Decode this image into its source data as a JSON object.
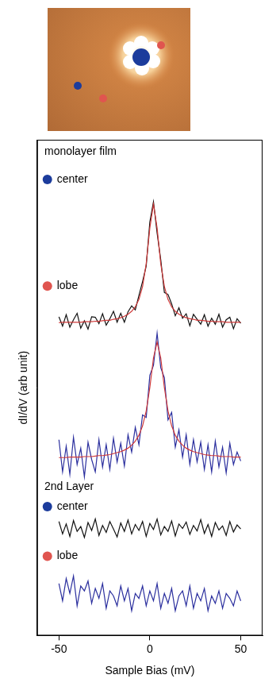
{
  "chart_data": {
    "type": "line",
    "x_label": "Sample Bias (mV)",
    "y_label": "dI/dV (arb unit)",
    "xlim": [
      -62,
      62
    ],
    "xticks": [
      -50,
      0,
      50
    ],
    "ylim": [
      0,
      10
    ],
    "grid": false,
    "tick_labels": "x",
    "x": [
      -50,
      -48,
      -46,
      -44,
      -42,
      -40,
      -38,
      -36,
      -34,
      -32,
      -30,
      -28,
      -26,
      -24,
      -22,
      -20,
      -18,
      -16,
      -14,
      -12,
      -10,
      -8,
      -6,
      -4,
      -2,
      0,
      2,
      4,
      6,
      8,
      10,
      12,
      14,
      16,
      18,
      20,
      22,
      24,
      26,
      28,
      30,
      32,
      34,
      36,
      38,
      40,
      42,
      44,
      46,
      48,
      50
    ],
    "series": [
      {
        "color": "#111111",
        "values": [
          6.43,
          6.24,
          6.47,
          6.22,
          6.37,
          6.5,
          6.2,
          6.35,
          6.18,
          6.43,
          6.42,
          6.29,
          6.49,
          6.26,
          6.39,
          6.54,
          6.32,
          6.5,
          6.32,
          6.53,
          6.65,
          6.57,
          6.86,
          7.14,
          7.45,
          8.34,
          8.75,
          8.12,
          7.58,
          6.92,
          6.88,
          6.69,
          6.45,
          6.61,
          6.4,
          6.49,
          6.25,
          6.48,
          6.38,
          6.28,
          6.47,
          6.24,
          6.4,
          6.28,
          6.48,
          6.22,
          6.37,
          6.42,
          6.19,
          6.39,
          6.3
        ]
      },
      {
        "color": "#d03a3a",
        "values": [
          6.31,
          6.32,
          6.32,
          6.32,
          6.32,
          6.32,
          6.32,
          6.33,
          6.33,
          6.33,
          6.34,
          6.34,
          6.35,
          6.36,
          6.36,
          6.38,
          6.39,
          6.41,
          6.44,
          6.48,
          6.54,
          6.63,
          6.78,
          7.04,
          7.5,
          8.22,
          8.7,
          8.22,
          7.5,
          7.04,
          6.78,
          6.63,
          6.54,
          6.48,
          6.44,
          6.41,
          6.39,
          6.38,
          6.36,
          6.36,
          6.35,
          6.34,
          6.34,
          6.33,
          6.33,
          6.33,
          6.32,
          6.32,
          6.32,
          6.32,
          6.32
        ]
      },
      {
        "color": "#2b2f9e",
        "values": [
          3.95,
          3.3,
          3.82,
          3.25,
          4.0,
          3.45,
          3.78,
          3.2,
          3.9,
          3.55,
          3.3,
          3.95,
          3.4,
          3.85,
          3.35,
          3.98,
          3.5,
          3.88,
          3.42,
          4.05,
          3.7,
          4.2,
          3.85,
          4.45,
          4.4,
          5.25,
          5.45,
          6.1,
          5.4,
          5.2,
          4.35,
          4.5,
          3.8,
          4.15,
          3.6,
          4.05,
          3.45,
          3.95,
          3.5,
          3.9,
          3.35,
          3.85,
          3.3,
          3.92,
          3.4,
          3.8,
          3.28,
          3.88,
          3.45,
          3.7,
          3.52
        ]
      },
      {
        "color": "#d03a3a",
        "values": [
          3.59,
          3.59,
          3.59,
          3.6,
          3.6,
          3.6,
          3.6,
          3.61,
          3.61,
          3.61,
          3.62,
          3.63,
          3.63,
          3.64,
          3.65,
          3.67,
          3.69,
          3.71,
          3.74,
          3.78,
          3.84,
          3.92,
          4.04,
          4.23,
          4.53,
          5.0,
          5.6,
          5.92,
          5.6,
          5.0,
          4.53,
          4.23,
          4.04,
          3.92,
          3.84,
          3.78,
          3.74,
          3.71,
          3.69,
          3.67,
          3.65,
          3.64,
          3.63,
          3.63,
          3.62,
          3.61,
          3.61,
          3.61,
          3.6,
          3.6,
          3.6
        ]
      },
      {
        "color": "#111111",
        "values": [
          2.3,
          2.05,
          2.25,
          2.0,
          2.32,
          2.1,
          2.2,
          1.98,
          2.28,
          2.12,
          2.35,
          2.02,
          2.22,
          2.08,
          2.3,
          2.15,
          1.99,
          2.27,
          2.1,
          2.33,
          2.05,
          2.24,
          2.12,
          2.3,
          2.0,
          2.26,
          2.14,
          2.35,
          2.03,
          2.2,
          2.1,
          2.31,
          2.01,
          2.25,
          2.16,
          2.29,
          2.04,
          2.22,
          2.11,
          2.34,
          2.06,
          2.24,
          2.0,
          2.28,
          2.13,
          2.21,
          2.02,
          2.3,
          2.09,
          2.23,
          2.15
        ]
      },
      {
        "color": "#2b2f9e",
        "values": [
          1.05,
          0.7,
          1.15,
          0.85,
          1.2,
          0.6,
          1.0,
          0.9,
          1.1,
          0.65,
          0.95,
          0.75,
          1.05,
          0.55,
          0.9,
          0.8,
          0.6,
          1.0,
          0.7,
          0.95,
          0.5,
          0.85,
          0.75,
          1.0,
          0.6,
          0.9,
          0.7,
          1.05,
          0.55,
          0.85,
          0.65,
          0.95,
          0.5,
          0.8,
          0.9,
          0.6,
          1.0,
          0.55,
          0.85,
          0.7,
          0.95,
          0.5,
          0.8,
          0.65,
          0.9,
          0.55,
          0.85,
          0.75,
          0.6,
          0.9,
          0.7
        ]
      }
    ],
    "annotations": [
      {
        "text": "monolayer film",
        "x": -58,
        "y": 9.75
      },
      {
        "text": "center",
        "x": -52,
        "y": 9.2,
        "marker": "circle",
        "color": "#1c3c9c"
      },
      {
        "text": "lobe",
        "x": -52,
        "y": 7.05,
        "marker": "circle",
        "color": "#e0554f"
      },
      {
        "text": "2nd Layer",
        "x": -58,
        "y": 3.0
      },
      {
        "text": "center",
        "x": -52,
        "y": 2.6,
        "marker": "circle",
        "color": "#1c3c9c"
      },
      {
        "text": "lobe",
        "x": -52,
        "y": 1.6,
        "marker": "circle",
        "color": "#e0554f"
      }
    ]
  }
}
